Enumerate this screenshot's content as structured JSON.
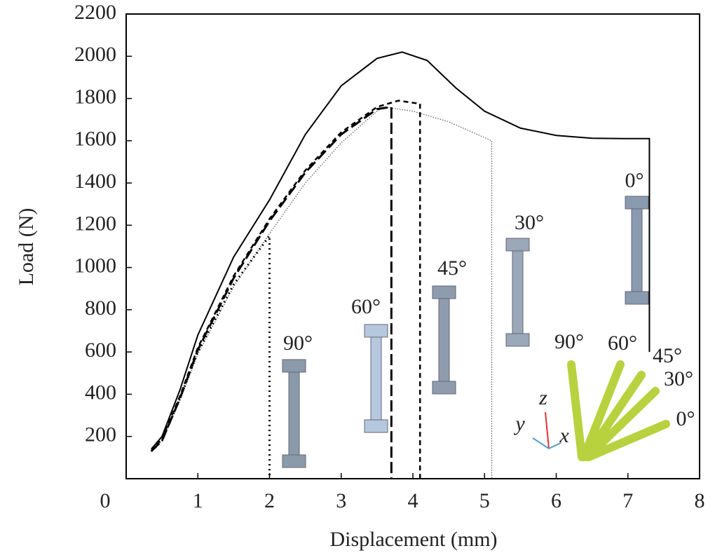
{
  "chart_data": {
    "type": "line",
    "x_label": "Displacement (mm)",
    "y_label": "Load (N)",
    "xlim": [
      0,
      8
    ],
    "xticks": [
      0,
      1,
      2,
      3,
      4,
      5,
      6,
      7,
      8
    ],
    "ylim": [
      0,
      2200
    ],
    "yticks": [
      200,
      400,
      600,
      800,
      1000,
      1200,
      1400,
      1600,
      1800,
      2000,
      2200
    ],
    "series": [
      {
        "name": "0°",
        "color": "#000000",
        "style": "solid",
        "x": [
          0.35,
          0.5,
          0.75,
          1,
          1.5,
          2,
          2.5,
          3,
          3.5,
          3.85,
          4.2,
          4.6,
          5,
          5.5,
          6,
          6.5,
          7,
          7.3,
          7.3
        ],
        "values": [
          140,
          200,
          420,
          680,
          1050,
          1320,
          1630,
          1860,
          1990,
          2020,
          1980,
          1850,
          1740,
          1660,
          1625,
          1612,
          1610,
          1610,
          600
        ]
      },
      {
        "name": "30°",
        "color": "#555555",
        "style": "fine",
        "x": [
          0.35,
          0.5,
          0.75,
          1,
          1.5,
          2,
          2.5,
          3,
          3.5,
          3.6,
          4,
          4.5,
          5.1,
          5.1
        ],
        "values": [
          130,
          180,
          370,
          590,
          910,
          1160,
          1400,
          1590,
          1740,
          1760,
          1740,
          1690,
          1600,
          0
        ]
      },
      {
        "name": "45°",
        "color": "#000000",
        "style": "dashed",
        "x": [
          0.35,
          0.5,
          0.75,
          1,
          1.5,
          2,
          2.5,
          3,
          3.5,
          3.8,
          4.1,
          4.1
        ],
        "values": [
          130,
          190,
          390,
          620,
          960,
          1230,
          1460,
          1640,
          1760,
          1790,
          1775,
          0
        ]
      },
      {
        "name": "60°",
        "color": "#000000",
        "style": "longdash",
        "x": [
          0.35,
          0.5,
          0.75,
          1,
          1.5,
          2,
          2.5,
          3,
          3.5,
          3.7,
          3.7
        ],
        "values": [
          130,
          180,
          380,
          610,
          950,
          1220,
          1450,
          1630,
          1750,
          1760,
          0
        ]
      },
      {
        "name": "90°",
        "color": "#000000",
        "style": "dotted",
        "x": [
          0.35,
          0.5,
          0.75,
          1,
          1.5,
          2,
          2
        ],
        "values": [
          130,
          180,
          380,
          600,
          920,
          1150,
          0
        ]
      }
    ],
    "inset_labels": [
      "90°",
      "60°",
      "45°",
      "30°",
      "0°"
    ],
    "inset_axes": [
      "z",
      "y",
      "x"
    ]
  }
}
